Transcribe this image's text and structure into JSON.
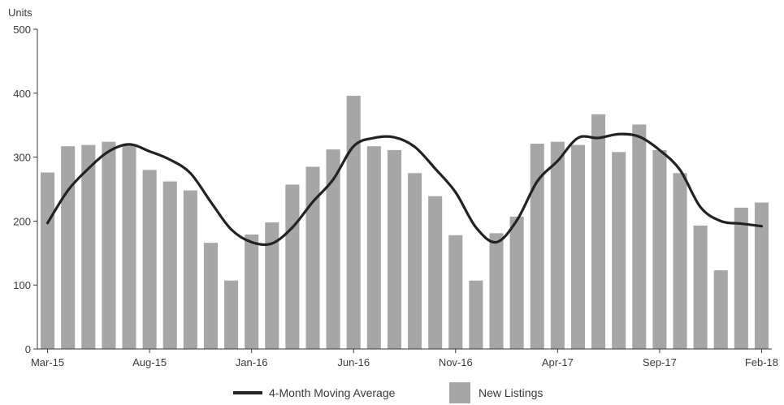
{
  "chart_data": {
    "type": "bar",
    "ylabel": "Units",
    "ylim": [
      0,
      500
    ],
    "yticks": [
      0,
      100,
      200,
      300,
      400,
      500
    ],
    "categories": [
      "Mar-15",
      "Apr-15",
      "May-15",
      "Jun-15",
      "Jul-15",
      "Aug-15",
      "Sep-15",
      "Oct-15",
      "Nov-15",
      "Dec-15",
      "Jan-16",
      "Feb-16",
      "Mar-16",
      "Apr-16",
      "May-16",
      "Jun-16",
      "Jul-16",
      "Aug-16",
      "Sep-16",
      "Oct-16",
      "Nov-16",
      "Dec-16",
      "Jan-17",
      "Feb-17",
      "Mar-17",
      "Apr-17",
      "May-17",
      "Jun-17",
      "Jul-17",
      "Aug-17",
      "Sep-17",
      "Oct-17",
      "Nov-17",
      "Dec-17",
      "Jan-18",
      "Feb-18"
    ],
    "xtick_labels": [
      "Mar-15",
      "Aug-15",
      "Jan-16",
      "Jun-16",
      "Nov-16",
      "Apr-17",
      "Sep-17",
      "Feb-18"
    ],
    "series": [
      {
        "name": "New Listings",
        "type": "bar",
        "color": "#a6a6a6",
        "values": [
          276,
          317,
          319,
          324,
          320,
          280,
          262,
          248,
          166,
          107,
          179,
          198,
          257,
          285,
          312,
          396,
          317,
          311,
          275,
          239,
          178,
          107,
          181,
          207,
          321,
          324,
          319,
          367,
          308,
          351,
          311,
          275,
          193,
          123,
          221,
          229
        ]
      },
      {
        "name": "4-Month Moving Average",
        "type": "line",
        "color": "#222222",
        "values": [
          197,
          248,
          282,
          309,
          320,
          309,
          296,
          275,
          230,
          187,
          167,
          165,
          190,
          230,
          265,
          317,
          330,
          331,
          316,
          282,
          245,
          190,
          167,
          201,
          262,
          294,
          330,
          330,
          336,
          332,
          311,
          280,
          222,
          200,
          196,
          192
        ]
      }
    ],
    "legend": {
      "placement": "bottom-center"
    },
    "grid": false
  }
}
